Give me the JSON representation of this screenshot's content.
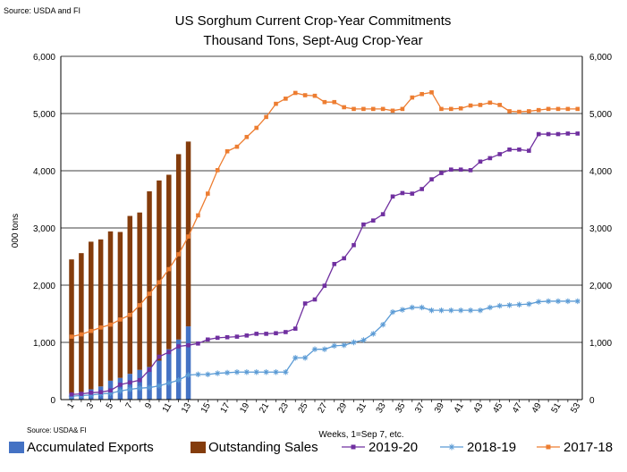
{
  "source_top": "Source: USDA and  FI",
  "source_bottom": "Source: USDA& FI",
  "chart_data": {
    "type": "bar",
    "title": "US Sorghum Current Crop-Year Commitments",
    "subtitle": "Thousand Tons, Sept-Aug Crop-Year",
    "xlabel": "Weeks, 1=Sep 7, etc.",
    "ylabel": "000 tons",
    "ylim": [
      0,
      6000
    ],
    "yticks": [
      0,
      1000,
      2000,
      3000,
      4000,
      5000,
      6000
    ],
    "ytick_labels": [
      "0",
      "1,000",
      "2,000",
      "3,000",
      "4,000",
      "5,000",
      "6,000"
    ],
    "x": [
      1,
      2,
      3,
      4,
      5,
      6,
      7,
      8,
      9,
      10,
      11,
      12,
      13,
      14,
      15,
      16,
      17,
      18,
      19,
      20,
      21,
      22,
      23,
      24,
      25,
      26,
      27,
      28,
      29,
      30,
      31,
      32,
      33,
      34,
      35,
      36,
      37,
      38,
      39,
      40,
      41,
      42,
      43,
      44,
      45,
      46,
      47,
      48,
      49,
      50,
      51,
      52,
      53
    ],
    "xtick_labels": [
      "1",
      "3",
      "5",
      "7",
      "9",
      "11",
      "13",
      "15",
      "17",
      "19",
      "21",
      "23",
      "25",
      "27",
      "29",
      "31",
      "33",
      "35",
      "37",
      "39",
      "41",
      "43",
      "45",
      "47",
      "49",
      "51",
      "53"
    ],
    "grid": true,
    "legend_position": "bottom",
    "colors": {
      "accumulated_exports": "#4472C4",
      "outstanding_sales": "#843C0C",
      "y2019_20": "#7030A0",
      "y2018_19": "#5B9BD5",
      "y2017_18": "#ED7D31"
    },
    "bar_series": [
      {
        "name": "Accumulated Exports",
        "key": "accumulated_exports",
        "stack": "base",
        "values": [
          100,
          130,
          180,
          230,
          330,
          380,
          450,
          520,
          570,
          680,
          880,
          1050,
          1280
        ]
      },
      {
        "name": "Outstanding Sales",
        "key": "outstanding_sales",
        "stack": "top",
        "values": [
          2350,
          2430,
          2580,
          2570,
          2610,
          2550,
          2760,
          2750,
          3070,
          3150,
          3050,
          3240,
          3230
        ]
      }
    ],
    "line_series": [
      {
        "name": "2019-20",
        "key": "y2019_20",
        "marker": "square",
        "values": [
          90,
          100,
          120,
          130,
          160,
          260,
          300,
          340,
          520,
          750,
          830,
          930,
          950,
          980,
          1050,
          1080,
          1090,
          1100,
          1120,
          1150,
          1150,
          1160,
          1180,
          1240,
          1680,
          1750,
          1990,
          2370,
          2470,
          2700,
          3060,
          3130,
          3240,
          3550,
          3610,
          3600,
          3680,
          3850,
          3960,
          4020,
          4020,
          4010,
          4160,
          4220,
          4290,
          4370,
          4370,
          4350,
          4640,
          4640,
          4640,
          4650,
          4650
        ]
      },
      {
        "name": "2018-19",
        "key": "y2018_19",
        "marker": "star",
        "values": [
          60,
          70,
          80,
          100,
          110,
          150,
          180,
          200,
          210,
          240,
          290,
          340,
          430,
          440,
          440,
          460,
          470,
          480,
          480,
          480,
          480,
          480,
          480,
          730,
          730,
          880,
          880,
          940,
          950,
          1000,
          1040,
          1150,
          1310,
          1530,
          1570,
          1610,
          1610,
          1560,
          1560,
          1560,
          1560,
          1560,
          1560,
          1610,
          1640,
          1650,
          1660,
          1670,
          1710,
          1720,
          1720,
          1720,
          1720
        ]
      },
      {
        "name": "2017-18",
        "key": "y2017_18",
        "marker": "square",
        "values": [
          1100,
          1140,
          1200,
          1260,
          1310,
          1400,
          1480,
          1650,
          1850,
          2050,
          2280,
          2540,
          2850,
          3220,
          3600,
          4010,
          4340,
          4420,
          4590,
          4750,
          4940,
          5170,
          5260,
          5360,
          5320,
          5310,
          5200,
          5200,
          5110,
          5080,
          5080,
          5080,
          5080,
          5050,
          5080,
          5280,
          5340,
          5370,
          5080,
          5080,
          5090,
          5140,
          5150,
          5190,
          5150,
          5040,
          5030,
          5040,
          5060,
          5080,
          5080,
          5080,
          5080
        ]
      }
    ]
  },
  "legend": [
    {
      "label": "Accumulated Exports",
      "key": "accumulated_exports",
      "kind": "bar"
    },
    {
      "label": "Outstanding Sales",
      "key": "outstanding_sales",
      "kind": "bar"
    },
    {
      "label": "2019-20",
      "key": "y2019_20",
      "kind": "line-square"
    },
    {
      "label": "2018-19",
      "key": "y2018_19",
      "kind": "line-star"
    },
    {
      "label": "2017-18",
      "key": "y2017_18",
      "kind": "line-square"
    }
  ]
}
